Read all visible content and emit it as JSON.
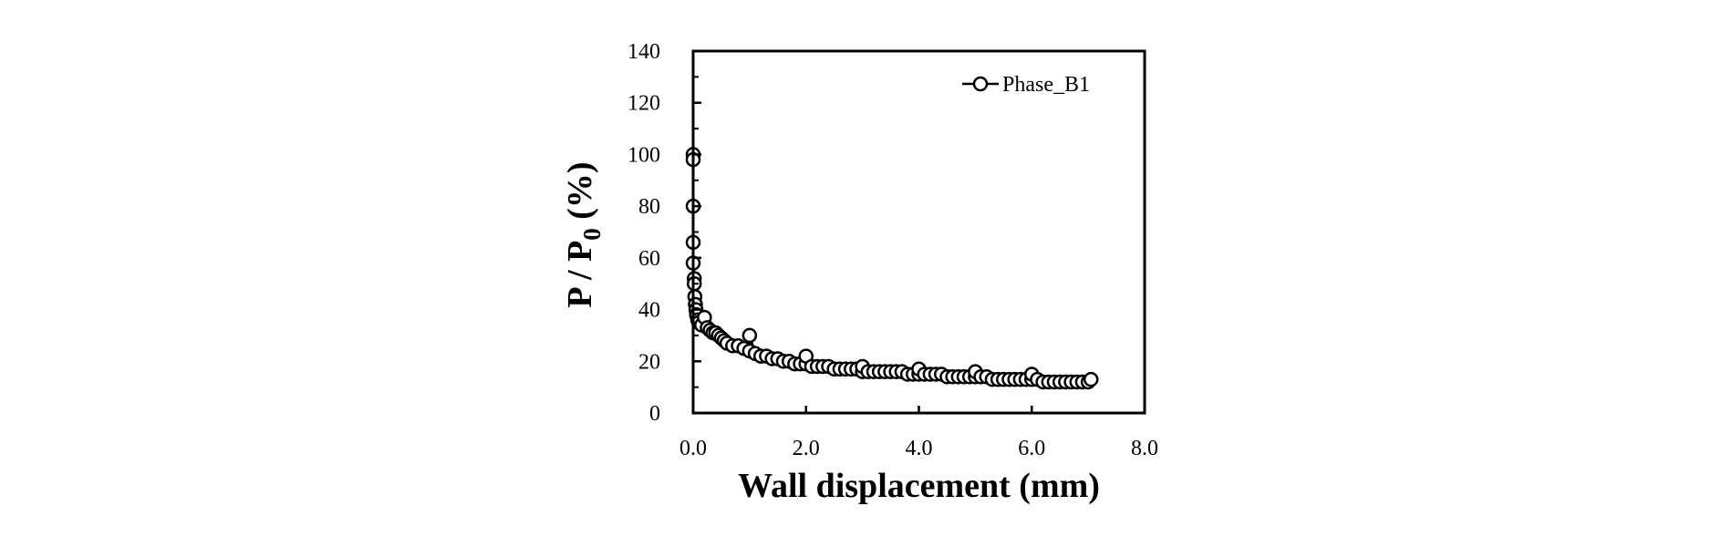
{
  "chart_data": {
    "type": "scatter",
    "title": "",
    "xlabel": "Wall displacement (mm)",
    "ylabel": {
      "main": "P / P",
      "subscript": "0",
      "suffix": " (%)"
    },
    "xlim": [
      0,
      8
    ],
    "ylim": [
      0,
      140
    ],
    "x_ticks": [
      "0.0",
      "2.0",
      "4.0",
      "6.0",
      "8.0"
    ],
    "y_ticks": [
      "0",
      "20",
      "40",
      "60",
      "80",
      "100",
      "120",
      "140"
    ],
    "grid": false,
    "legend": {
      "position": "top-right",
      "entries": [
        "Phase_B1"
      ]
    },
    "series": [
      {
        "name": "Phase_B1",
        "marker": "open-circle",
        "color": "#000000",
        "x": [
          0.0,
          0.0,
          0.0,
          0.0,
          0.0,
          0.02,
          0.02,
          0.03,
          0.04,
          0.05,
          0.06,
          0.08,
          0.1,
          0.15,
          0.2,
          0.25,
          0.3,
          0.35,
          0.4,
          0.45,
          0.5,
          0.55,
          0.6,
          0.7,
          0.8,
          0.9,
          1.0,
          1.0,
          1.1,
          1.2,
          1.3,
          1.4,
          1.5,
          1.6,
          1.7,
          1.8,
          1.9,
          2.0,
          2.0,
          2.1,
          2.2,
          2.3,
          2.4,
          2.5,
          2.6,
          2.7,
          2.8,
          2.9,
          3.0,
          3.0,
          3.1,
          3.2,
          3.3,
          3.4,
          3.5,
          3.6,
          3.7,
          3.8,
          3.9,
          4.0,
          4.0,
          4.1,
          4.2,
          4.3,
          4.4,
          4.5,
          4.6,
          4.7,
          4.8,
          4.9,
          5.0,
          5.0,
          5.1,
          5.2,
          5.3,
          5.4,
          5.5,
          5.6,
          5.7,
          5.8,
          5.9,
          6.0,
          6.0,
          6.1,
          6.2,
          6.3,
          6.4,
          6.5,
          6.6,
          6.7,
          6.8,
          6.9,
          7.0,
          7.05
        ],
        "y": [
          100,
          98,
          80,
          66,
          58,
          52,
          50,
          45,
          42,
          40,
          38,
          36,
          35,
          34,
          37,
          33,
          32,
          31,
          31,
          30,
          29,
          28,
          27,
          26,
          26,
          25,
          24,
          30,
          23,
          22,
          22,
          21,
          21,
          20,
          20,
          19,
          19,
          19,
          22,
          18,
          18,
          18,
          18,
          17,
          17,
          17,
          17,
          17,
          16,
          18,
          16,
          16,
          16,
          16,
          16,
          16,
          16,
          15,
          15,
          15,
          17,
          15,
          15,
          15,
          15,
          14,
          14,
          14,
          14,
          14,
          14,
          16,
          14,
          14,
          13,
          13,
          13,
          13,
          13,
          13,
          13,
          13,
          15,
          13,
          12,
          12,
          12,
          12,
          12,
          12,
          12,
          12,
          12,
          13
        ]
      }
    ]
  }
}
